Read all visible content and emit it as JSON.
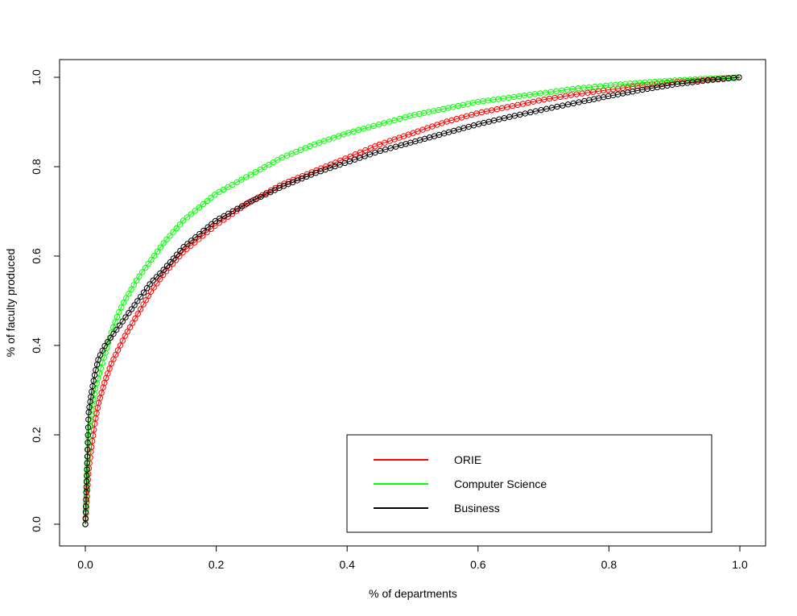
{
  "chart_data": {
    "type": "line",
    "title": "",
    "xlabel": "% of departments",
    "ylabel": "% of faculty produced",
    "xlim": [
      0,
      1
    ],
    "ylim": [
      0,
      1
    ],
    "xticks": [
      "0.0",
      "0.2",
      "0.4",
      "0.6",
      "0.8",
      "1.0"
    ],
    "yticks": [
      "0.0",
      "0.2",
      "0.4",
      "0.6",
      "0.8",
      "1.0"
    ],
    "grid": false,
    "legend_position": "bottom-right",
    "series": [
      {
        "name": "ORIE",
        "color": "#ff0000",
        "marker": "open-circle",
        "x": [
          0,
          0.005,
          0.01,
          0.015,
          0.02,
          0.03,
          0.04,
          0.05,
          0.06,
          0.08,
          0.1,
          0.12,
          0.15,
          0.2,
          0.25,
          0.3,
          0.35,
          0.4,
          0.45,
          0.5,
          0.55,
          0.6,
          0.65,
          0.7,
          0.75,
          0.8,
          0.85,
          0.9,
          0.95,
          1.0
        ],
        "y": [
          0,
          0.12,
          0.18,
          0.23,
          0.27,
          0.32,
          0.36,
          0.39,
          0.42,
          0.47,
          0.52,
          0.56,
          0.61,
          0.67,
          0.72,
          0.76,
          0.79,
          0.82,
          0.85,
          0.875,
          0.9,
          0.92,
          0.935,
          0.95,
          0.962,
          0.972,
          0.982,
          0.99,
          0.995,
          1.0
        ]
      },
      {
        "name": "Computer Science",
        "color": "#00ff00",
        "marker": "open-circle",
        "x": [
          0,
          0.005,
          0.01,
          0.015,
          0.02,
          0.03,
          0.04,
          0.05,
          0.06,
          0.08,
          0.1,
          0.12,
          0.15,
          0.2,
          0.25,
          0.3,
          0.35,
          0.4,
          0.45,
          0.5,
          0.55,
          0.6,
          0.65,
          0.7,
          0.75,
          0.8,
          0.85,
          0.9,
          0.95,
          1.0
        ],
        "y": [
          0,
          0.2,
          0.26,
          0.3,
          0.33,
          0.38,
          0.43,
          0.47,
          0.5,
          0.55,
          0.59,
          0.63,
          0.68,
          0.74,
          0.78,
          0.82,
          0.85,
          0.875,
          0.895,
          0.915,
          0.93,
          0.945,
          0.955,
          0.965,
          0.975,
          0.982,
          0.988,
          0.993,
          0.997,
          1.0
        ]
      },
      {
        "name": "Business",
        "color": "#000000",
        "marker": "open-circle",
        "x": [
          0,
          0.005,
          0.01,
          0.015,
          0.02,
          0.03,
          0.04,
          0.05,
          0.06,
          0.08,
          0.1,
          0.12,
          0.15,
          0.2,
          0.25,
          0.3,
          0.35,
          0.4,
          0.45,
          0.5,
          0.55,
          0.6,
          0.65,
          0.7,
          0.75,
          0.8,
          0.85,
          0.9,
          0.95,
          1.0
        ],
        "y": [
          0,
          0.25,
          0.3,
          0.34,
          0.37,
          0.4,
          0.42,
          0.44,
          0.46,
          0.5,
          0.54,
          0.57,
          0.62,
          0.68,
          0.72,
          0.755,
          0.785,
          0.81,
          0.835,
          0.855,
          0.875,
          0.895,
          0.912,
          0.928,
          0.943,
          0.958,
          0.972,
          0.984,
          0.993,
          1.0
        ]
      }
    ]
  }
}
